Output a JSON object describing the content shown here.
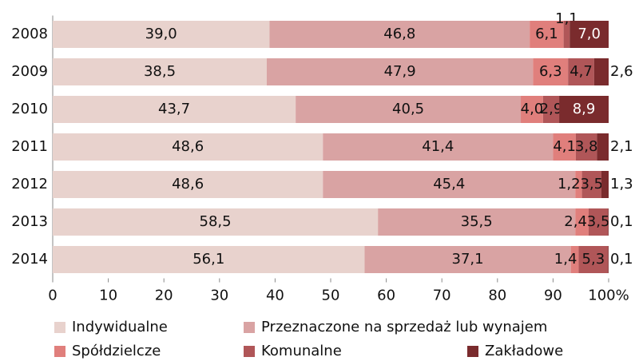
{
  "chart_data": {
    "type": "stacked_bar_horizontal",
    "categories": [
      "2008",
      "2009",
      "2010",
      "2011",
      "2012",
      "2013",
      "2014"
    ],
    "series": [
      {
        "name": "Indywidualne",
        "color": "#e8d2cd",
        "values": [
          39.0,
          38.5,
          43.7,
          48.6,
          48.6,
          58.5,
          56.1
        ],
        "value_labels": [
          "39,0",
          "38,5",
          "43,7",
          "48,6",
          "48,6",
          "58,5",
          "56,1"
        ]
      },
      {
        "name": "Przeznaczone na sprzedaż lub wynajem",
        "color": "#d9a3a3",
        "values": [
          46.8,
          47.9,
          40.5,
          41.4,
          45.4,
          35.5,
          37.1
        ],
        "value_labels": [
          "46,8",
          "47,9",
          "40,5",
          "41,4",
          "45,4",
          "35,5",
          "37,1"
        ]
      },
      {
        "name": "Spółdzielcze",
        "color": "#e07f7c",
        "values": [
          6.1,
          6.3,
          4.0,
          4.1,
          1.2,
          2.4,
          1.4
        ],
        "value_labels": [
          "6,1",
          "6,3",
          "4,0",
          "4,1",
          "1,2",
          "2,4",
          "1,4"
        ]
      },
      {
        "name": "Komunalne",
        "color": "#b05658",
        "values": [
          1.1,
          4.7,
          2.9,
          3.8,
          3.5,
          3.5,
          5.3
        ],
        "value_labels": [
          "1,1",
          "4,7",
          "2,9",
          "3,8",
          "3,5",
          "3,5",
          "5,3"
        ]
      },
      {
        "name": "Zakładowe",
        "color": "#7a2b2d",
        "values": [
          7.0,
          2.6,
          8.9,
          2.1,
          1.3,
          0.1,
          0.1
        ],
        "value_labels": [
          "7,0",
          "2,6",
          "8,9",
          "2,1",
          "1,3",
          "0,1",
          "0,1"
        ]
      }
    ],
    "xlim": [
      0,
      100
    ],
    "xticks": [
      0,
      10,
      20,
      30,
      40,
      50,
      60,
      70,
      80,
      90,
      {
        "value": 100,
        "label": "100%"
      }
    ],
    "legend": "bottom"
  }
}
